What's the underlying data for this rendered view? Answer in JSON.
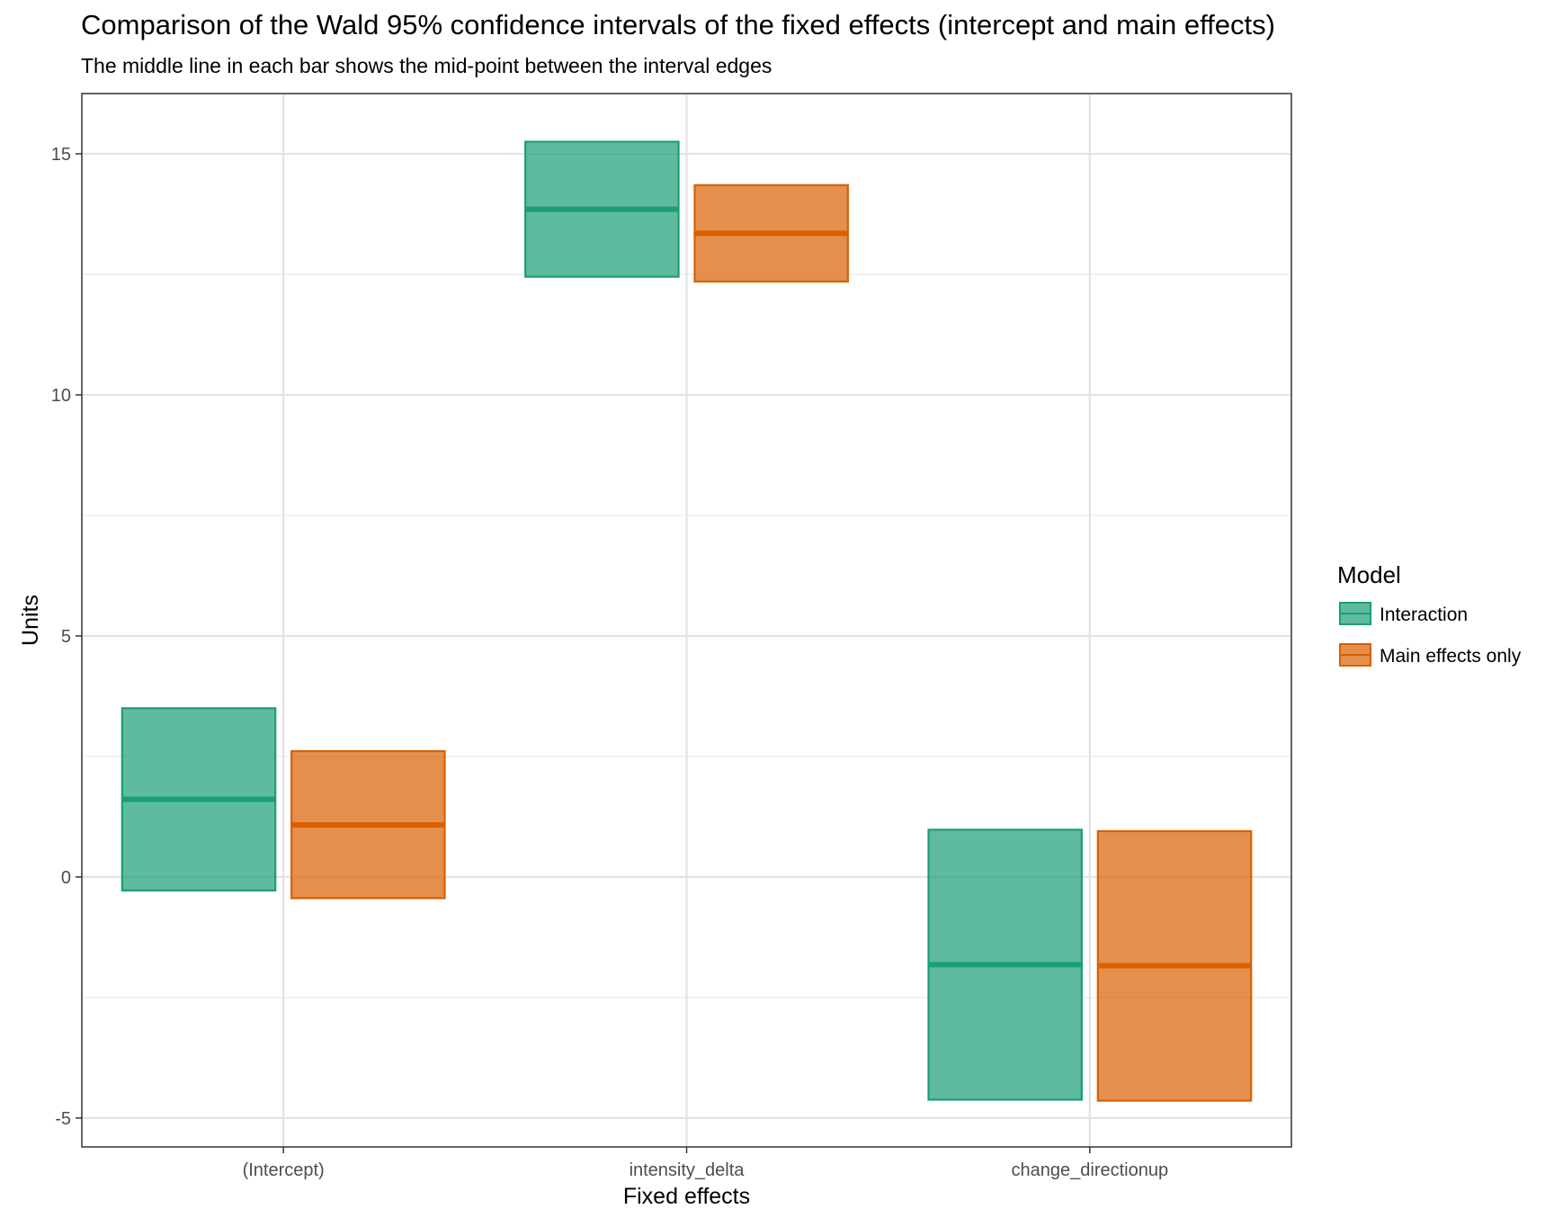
{
  "chart_data": {
    "type": "bar",
    "title": "Comparison of the Wald 95% confidence intervals of the fixed effects (intercept and main effects)",
    "subtitle": "The middle line in each bar shows the mid-point between the interval edges",
    "xlabel": "Fixed effects",
    "ylabel": "Units",
    "categories": [
      "(Intercept)",
      "intensity_delta",
      "change_directionup"
    ],
    "ylim": [
      -5.6,
      16.25
    ],
    "yticks": [
      -5,
      0,
      5,
      10,
      15
    ],
    "ytick_labels": [
      "-5",
      "0",
      "5",
      "10",
      "15"
    ],
    "grid": true,
    "legend": {
      "title": "Model",
      "position": "right"
    },
    "series": [
      {
        "name": "Interaction",
        "fill": "#1b9e77",
        "low": [
          -0.28,
          12.45,
          -4.62
        ],
        "high": [
          3.5,
          15.25,
          0.98
        ],
        "mid": [
          1.61,
          13.85,
          -1.82
        ]
      },
      {
        "name": "Main effects only",
        "fill": "#d95f02",
        "low": [
          -0.44,
          12.35,
          -4.64
        ],
        "high": [
          2.61,
          14.35,
          0.95
        ],
        "mid": [
          1.08,
          13.35,
          -1.84
        ]
      }
    ]
  }
}
